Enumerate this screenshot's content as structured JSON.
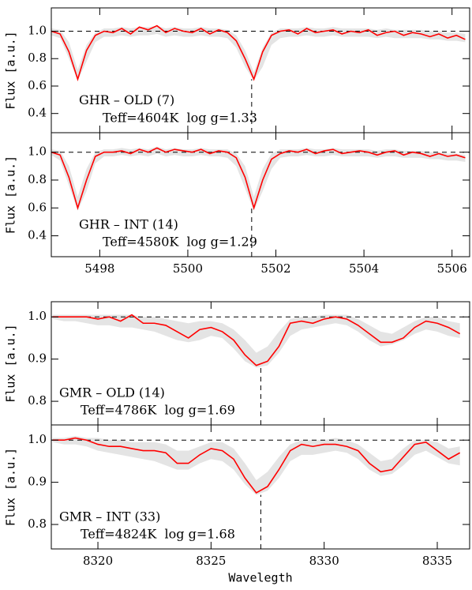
{
  "chart_data": [
    {
      "type": "line",
      "ylabel": "Flux [a.u.]",
      "annotations": [
        "GHR – OLD (7)",
        "Teff=4604K  log g=1.33"
      ],
      "xlim": [
        5496.9,
        5506.4
      ],
      "ylim": [
        0.26,
        1.17
      ],
      "xticks": [
        5498,
        5500,
        5502,
        5504,
        5506
      ],
      "yticks": [
        0.4,
        0.6,
        0.8,
        {
          "value": 1.0,
          "label": "1.0"
        }
      ],
      "show_xtick_labels": false,
      "hline": 1.0,
      "vline": {
        "x": 5501.45,
        "ymax": 0.65
      },
      "x": [
        5496.9,
        5497.1,
        5497.3,
        5497.5,
        5497.7,
        5497.9,
        5498.1,
        5498.3,
        5498.5,
        5498.7,
        5498.9,
        5499.1,
        5499.3,
        5499.5,
        5499.7,
        5499.9,
        5500.1,
        5500.3,
        5500.5,
        5500.7,
        5500.9,
        5501.1,
        5501.3,
        5501.5,
        5501.7,
        5501.9,
        5502.1,
        5502.3,
        5502.5,
        5502.7,
        5502.9,
        5503.1,
        5503.3,
        5503.5,
        5503.7,
        5503.9,
        5504.1,
        5504.3,
        5504.5,
        5504.7,
        5504.9,
        5505.1,
        5505.3,
        5505.5,
        5505.7,
        5505.9,
        5506.1,
        5506.3
      ],
      "band": {
        "color": "#e4e4e4",
        "low": [
          0.97,
          0.95,
          0.8,
          0.64,
          0.78,
          0.92,
          0.96,
          0.96,
          0.97,
          0.96,
          0.97,
          0.97,
          0.98,
          0.96,
          0.97,
          0.96,
          0.96,
          0.97,
          0.96,
          0.96,
          0.95,
          0.88,
          0.74,
          0.64,
          0.74,
          0.9,
          0.95,
          0.96,
          0.96,
          0.97,
          0.96,
          0.96,
          0.97,
          0.96,
          0.96,
          0.96,
          0.96,
          0.95,
          0.96,
          0.95,
          0.95,
          0.95,
          0.95,
          0.94,
          0.94,
          0.93,
          0.93,
          0.92
        ],
        "high": [
          1.02,
          1.01,
          0.92,
          0.72,
          0.9,
          0.99,
          1.02,
          1.02,
          1.03,
          1.02,
          1.03,
          1.03,
          1.04,
          1.02,
          1.03,
          1.02,
          1.02,
          1.03,
          1.02,
          1.02,
          1.01,
          0.97,
          0.86,
          0.7,
          0.88,
          0.99,
          1.02,
          1.02,
          1.02,
          1.03,
          1.02,
          1.02,
          1.03,
          1.02,
          1.02,
          1.02,
          1.02,
          1.01,
          1.02,
          1.01,
          1.01,
          1.01,
          1.01,
          1.0,
          1.0,
          0.99,
          0.99,
          0.98
        ]
      },
      "series": [
        {
          "color": "#ff0000",
          "values": [
            1.0,
            0.98,
            0.85,
            0.65,
            0.86,
            0.97,
            1.0,
            0.99,
            1.02,
            0.98,
            1.03,
            1.01,
            1.04,
            0.99,
            1.02,
            1.0,
            0.99,
            1.02,
            0.98,
            1.01,
            0.99,
            0.93,
            0.8,
            0.65,
            0.85,
            0.97,
            1.0,
            1.01,
            0.98,
            1.02,
            0.99,
            1.0,
            1.01,
            0.98,
            1.0,
            0.99,
            1.01,
            0.97,
            0.99,
            1.0,
            0.97,
            0.99,
            0.98,
            0.96,
            0.98,
            0.95,
            0.97,
            0.94
          ]
        }
      ]
    },
    {
      "type": "line",
      "ylabel": "Flux [a.u.]",
      "annotations": [
        "GHR – INT (14)",
        "Teff=4580K  log g=1.29"
      ],
      "xlim": [
        5496.9,
        5506.4
      ],
      "ylim": [
        0.25,
        1.14
      ],
      "xticks": [
        5498,
        5500,
        5502,
        5504,
        5506
      ],
      "yticks": [
        0.4,
        0.6,
        0.8,
        {
          "value": 1.0,
          "label": "1.0"
        }
      ],
      "show_xtick_labels": true,
      "hline": 1.0,
      "vline": {
        "x": 5501.45,
        "ymax": 0.6
      },
      "x": [
        5496.9,
        5497.1,
        5497.3,
        5497.5,
        5497.7,
        5497.9,
        5498.1,
        5498.3,
        5498.5,
        5498.7,
        5498.9,
        5499.1,
        5499.3,
        5499.5,
        5499.7,
        5499.9,
        5500.1,
        5500.3,
        5500.5,
        5500.7,
        5500.9,
        5501.1,
        5501.3,
        5501.5,
        5501.7,
        5501.9,
        5502.1,
        5502.3,
        5502.5,
        5502.7,
        5502.9,
        5503.1,
        5503.3,
        5503.5,
        5503.7,
        5503.9,
        5504.1,
        5504.3,
        5504.5,
        5504.7,
        5504.9,
        5505.1,
        5505.3,
        5505.5,
        5505.7,
        5505.9,
        5506.1,
        5506.3
      ],
      "band": {
        "color": "#e4e4e4",
        "low": [
          0.98,
          0.94,
          0.76,
          0.58,
          0.72,
          0.92,
          0.97,
          0.97,
          0.98,
          0.97,
          0.98,
          0.97,
          0.99,
          0.97,
          0.98,
          0.97,
          0.97,
          0.98,
          0.97,
          0.97,
          0.96,
          0.9,
          0.74,
          0.58,
          0.72,
          0.88,
          0.96,
          0.97,
          0.97,
          0.98,
          0.97,
          0.97,
          0.98,
          0.97,
          0.97,
          0.97,
          0.97,
          0.96,
          0.97,
          0.97,
          0.96,
          0.96,
          0.96,
          0.95,
          0.95,
          0.94,
          0.94,
          0.93
        ],
        "high": [
          1.02,
          1.01,
          0.9,
          0.68,
          0.88,
          1.0,
          1.02,
          1.02,
          1.03,
          1.02,
          1.03,
          1.02,
          1.04,
          1.02,
          1.03,
          1.02,
          1.02,
          1.03,
          1.02,
          1.02,
          1.02,
          0.99,
          0.9,
          0.68,
          0.88,
          0.99,
          1.02,
          1.02,
          1.02,
          1.03,
          1.02,
          1.02,
          1.03,
          1.02,
          1.02,
          1.02,
          1.02,
          1.01,
          1.02,
          1.02,
          1.01,
          1.01,
          1.01,
          1.0,
          1.0,
          0.99,
          0.99,
          0.98
        ]
      },
      "series": [
        {
          "color": "#ff0000",
          "values": [
            1.0,
            0.98,
            0.82,
            0.6,
            0.8,
            0.97,
            1.0,
            1.0,
            1.01,
            0.99,
            1.02,
            1.0,
            1.03,
            1.0,
            1.02,
            1.01,
            1.0,
            1.02,
            0.99,
            1.01,
            1.0,
            0.96,
            0.82,
            0.6,
            0.8,
            0.95,
            0.99,
            1.01,
            1.0,
            1.02,
            0.99,
            1.01,
            1.02,
            0.99,
            1.0,
            1.01,
            1.0,
            0.98,
            1.0,
            1.01,
            0.98,
            1.0,
            0.99,
            0.97,
            0.99,
            0.97,
            0.98,
            0.96
          ]
        }
      ]
    },
    {
      "type": "line",
      "ylabel": "Flux [a.u.]",
      "annotations": [
        "GMR – OLD (14)",
        "Teff=4786K  log g=1.69"
      ],
      "xlim": [
        8317.94,
        8336.43
      ],
      "ylim": [
        0.744,
        1.036
      ],
      "xticks": [
        8320,
        8325,
        8330,
        8335
      ],
      "yticks": [
        0.8,
        0.9,
        {
          "value": 1.0,
          "label": "1.0"
        }
      ],
      "show_xtick_labels": false,
      "hline": 1.0,
      "vline": {
        "x": 8327.2,
        "ymax": 0.89
      },
      "x": [
        8318,
        8318.5,
        8319,
        8319.5,
        8320,
        8320.5,
        8321,
        8321.5,
        8322,
        8322.5,
        8323,
        8323.5,
        8324,
        8324.5,
        8325,
        8325.5,
        8326,
        8326.5,
        8327,
        8327.5,
        8328,
        8328.5,
        8329,
        8329.5,
        8330,
        8330.5,
        8331,
        8331.5,
        8332,
        8332.5,
        8333,
        8333.5,
        8334,
        8334.5,
        8335,
        8335.5,
        8336
      ],
      "band": {
        "color": "#e4e4e4",
        "low": [
          0.995,
          0.99,
          0.99,
          0.985,
          0.98,
          0.98,
          0.975,
          0.975,
          0.97,
          0.965,
          0.955,
          0.945,
          0.94,
          0.945,
          0.955,
          0.95,
          0.925,
          0.895,
          0.88,
          0.885,
          0.915,
          0.955,
          0.97,
          0.975,
          0.98,
          0.985,
          0.98,
          0.965,
          0.945,
          0.93,
          0.935,
          0.945,
          0.96,
          0.97,
          0.965,
          0.955,
          0.95
        ],
        "high": [
          1.005,
          1.005,
          1.005,
          1.005,
          1.005,
          1.005,
          1.005,
          1.005,
          1.0,
          1.0,
          0.995,
          0.99,
          0.985,
          0.99,
          0.99,
          0.985,
          0.97,
          0.945,
          0.915,
          0.93,
          0.965,
          0.995,
          1.0,
          1.0,
          1.005,
          1.005,
          1.005,
          0.995,
          0.98,
          0.965,
          0.96,
          0.975,
          0.99,
          1.0,
          1.0,
          0.99,
          0.985
        ]
      },
      "series": [
        {
          "color": "#ff0000",
          "values": [
            1.0,
            1.0,
            1.0,
            1.0,
            0.995,
            1.0,
            0.99,
            1.005,
            0.985,
            0.985,
            0.98,
            0.965,
            0.95,
            0.97,
            0.975,
            0.965,
            0.945,
            0.91,
            0.885,
            0.895,
            0.93,
            0.985,
            0.99,
            0.985,
            0.995,
            1.0,
            0.995,
            0.98,
            0.96,
            0.94,
            0.94,
            0.95,
            0.975,
            0.99,
            0.985,
            0.975,
            0.96
          ]
        }
      ]
    },
    {
      "type": "line",
      "ylabel": "Flux [a.u.]",
      "xlabel": "Wavelegth",
      "annotations": [
        "GMR – INT (33)",
        "Teff=4824K  log g=1.68"
      ],
      "xlim": [
        8317.94,
        8336.43
      ],
      "ylim": [
        0.742,
        1.036
      ],
      "xticks": [
        8320,
        8325,
        8330,
        8335
      ],
      "yticks": [
        0.8,
        0.9,
        {
          "value": 1.0,
          "label": "1.0"
        }
      ],
      "show_xtick_labels": true,
      "hline": 1.0,
      "vline": {
        "x": 8327.2,
        "ymax": 0.87
      },
      "x": [
        8318,
        8318.5,
        8319,
        8319.5,
        8320,
        8320.5,
        8321,
        8321.5,
        8322,
        8322.5,
        8323,
        8323.5,
        8324,
        8324.5,
        8325,
        8325.5,
        8326,
        8326.5,
        8327,
        8327.5,
        8328,
        8328.5,
        8329,
        8329.5,
        8330,
        8330.5,
        8331,
        8331.5,
        8332,
        8332.5,
        8333,
        8333.5,
        8334,
        8334.5,
        8335,
        8335.5,
        8336
      ],
      "band": {
        "color": "#e4e4e4",
        "low": [
          0.995,
          0.99,
          0.99,
          0.985,
          0.975,
          0.97,
          0.965,
          0.96,
          0.955,
          0.95,
          0.94,
          0.93,
          0.93,
          0.945,
          0.955,
          0.95,
          0.93,
          0.895,
          0.87,
          0.88,
          0.91,
          0.95,
          0.965,
          0.965,
          0.97,
          0.975,
          0.97,
          0.955,
          0.93,
          0.915,
          0.92,
          0.94,
          0.965,
          0.975,
          0.96,
          0.945,
          0.94
        ],
        "high": [
          1.005,
          1.005,
          1.01,
          1.005,
          1.005,
          1.0,
          1.0,
          0.995,
          0.995,
          0.995,
          0.99,
          0.975,
          0.975,
          0.985,
          0.995,
          0.995,
          0.98,
          0.945,
          0.905,
          0.925,
          0.96,
          0.99,
          1.0,
          1.0,
          1.0,
          1.005,
          1.0,
          0.99,
          0.97,
          0.95,
          0.955,
          0.98,
          1.0,
          1.0,
          0.995,
          0.98,
          0.985
        ]
      },
      "series": [
        {
          "color": "#ff0000",
          "values": [
            1.0,
            1.0,
            1.005,
            1.0,
            0.99,
            0.985,
            0.985,
            0.98,
            0.975,
            0.975,
            0.97,
            0.945,
            0.945,
            0.965,
            0.98,
            0.975,
            0.955,
            0.91,
            0.875,
            0.89,
            0.93,
            0.975,
            0.99,
            0.985,
            0.99,
            0.99,
            0.985,
            0.975,
            0.945,
            0.925,
            0.93,
            0.96,
            0.99,
            0.995,
            0.975,
            0.955,
            0.97
          ]
        }
      ]
    }
  ]
}
